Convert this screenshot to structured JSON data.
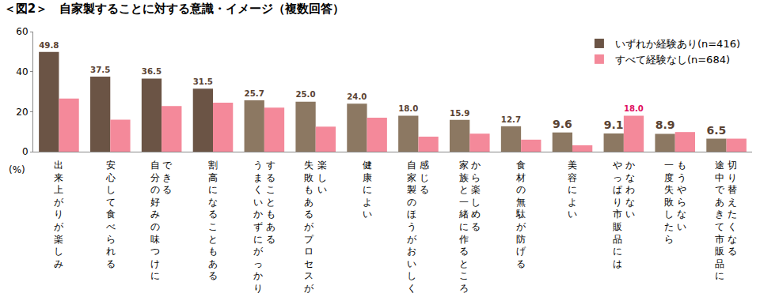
{
  "chart_data": {
    "type": "bar",
    "title": "＜図2＞　自家製することに対する意識・イメージ（複数回答）",
    "ylabel": "(%)",
    "categories": [
      "出来上がりが楽しみ",
      "安心して食べられる",
      "自分の好みの味つけに\nできる",
      "割高になることもある",
      "うまくいかずにがっかり\nすることもある",
      "失敗もあるがプロセスが\n楽しい",
      "健康によい",
      "自家製のほうがおいしく\n感じる",
      "家族と一緒に作るところ\nから楽しめる",
      "食材の無駄が防げる",
      "美容によい",
      "やっぱり市販品には\nかなわない",
      "一度失敗したら\nもうやらない",
      "途中であきて市販品に\n切り替えたくなる"
    ],
    "series": [
      {
        "name": "いずれか経験あり(n=416)",
        "color": "#6b5445",
        "colors": [
          "#6b5445",
          "#6b5445",
          "#6b5445",
          "#6b5445",
          "#8c7862",
          "#8c7862",
          "#8c7862",
          "#8c7862",
          "#8c7862",
          "#8c7862",
          "#8c7862",
          "#8c7862",
          "#8c7862",
          "#8c7862"
        ],
        "values": [
          49.8,
          37.5,
          36.5,
          31.5,
          25.7,
          25.0,
          24.0,
          18.0,
          15.9,
          12.7,
          9.6,
          9.1,
          8.9,
          6.5
        ],
        "value_labels": [
          "49.8",
          "37.5",
          "36.5",
          "31.5",
          "25.7",
          "25.0",
          "24.0",
          "18.0",
          "15.9",
          "12.7",
          "9.6",
          "9.1",
          "8.9",
          "6.5"
        ]
      },
      {
        "name": "すべて経験なし(n=684)",
        "color": "#f4899a",
        "values": [
          26.5,
          16.0,
          22.8,
          24.5,
          22.0,
          12.5,
          17.0,
          7.5,
          9.0,
          6.0,
          3.2,
          18.0,
          9.8,
          6.5
        ],
        "value_labels": [
          null,
          null,
          null,
          null,
          null,
          null,
          null,
          null,
          null,
          null,
          null,
          "18.0",
          null,
          null
        ]
      }
    ],
    "ylim": [
      0,
      60
    ],
    "yticks": [
      0,
      20,
      40,
      60
    ],
    "grid": false,
    "legend": "upper right",
    "data_labels": true
  }
}
